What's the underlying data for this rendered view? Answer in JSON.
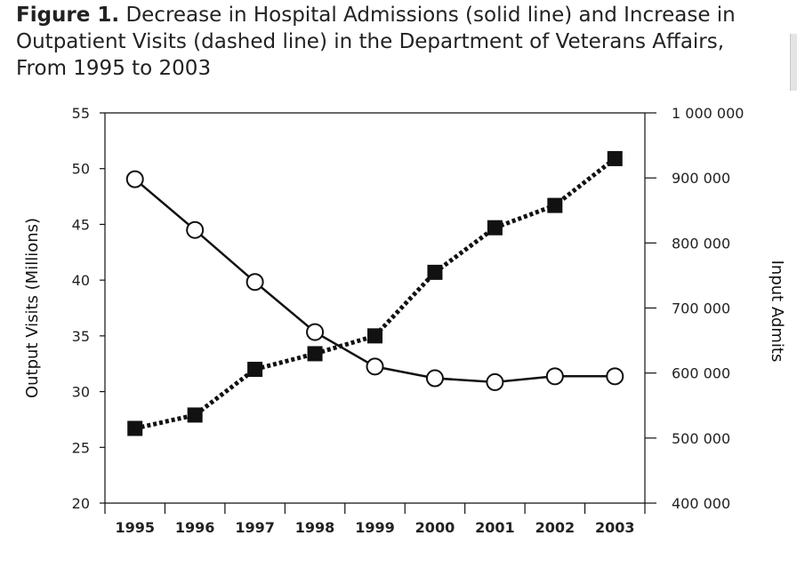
{
  "figure": {
    "label": "Figure 1.",
    "caption": "Decrease in Hospital Admissions (solid line) and Increase in Outpatient Visits (dashed line) in the Department of Veterans Affairs, From 1995 to 2003"
  },
  "chart_data": {
    "type": "line",
    "title": "Figure 1. Decrease in Hospital Admissions (solid line) and Increase in Outpatient Visits (dashed line) in the Department of Veterans Affairs, From 1995 to 2003",
    "categories": [
      "1995",
      "1996",
      "1997",
      "1998",
      "1999",
      "2000",
      "2001",
      "2002",
      "2003"
    ],
    "ylabel": "Output Visits (Millions)",
    "ylabel_right": "Input Admits",
    "ylim": [
      20,
      55
    ],
    "ylim_right": [
      400000,
      1000000
    ],
    "y_ticks": [
      "20",
      "25",
      "30",
      "35",
      "40",
      "45",
      "50",
      "55"
    ],
    "y_right_ticks": [
      "400 000",
      "500 000",
      "600 000",
      "700 000",
      "800 000",
      "900 000",
      "1 000 000"
    ],
    "grid": false,
    "legend": "none",
    "series": [
      {
        "axis": "left",
        "style": "dashed",
        "marker": "filled-square",
        "color": "#111111",
        "values": [
          26.7,
          27.9,
          32.0,
          33.4,
          35.0,
          40.7,
          44.7,
          46.7,
          50.9
        ]
      },
      {
        "axis": "right",
        "style": "solid",
        "marker": "open-circle",
        "color": "#111111",
        "values": [
          898000,
          820000,
          740000,
          663000,
          610000,
          592000,
          586000,
          595000,
          595000
        ]
      }
    ]
  }
}
